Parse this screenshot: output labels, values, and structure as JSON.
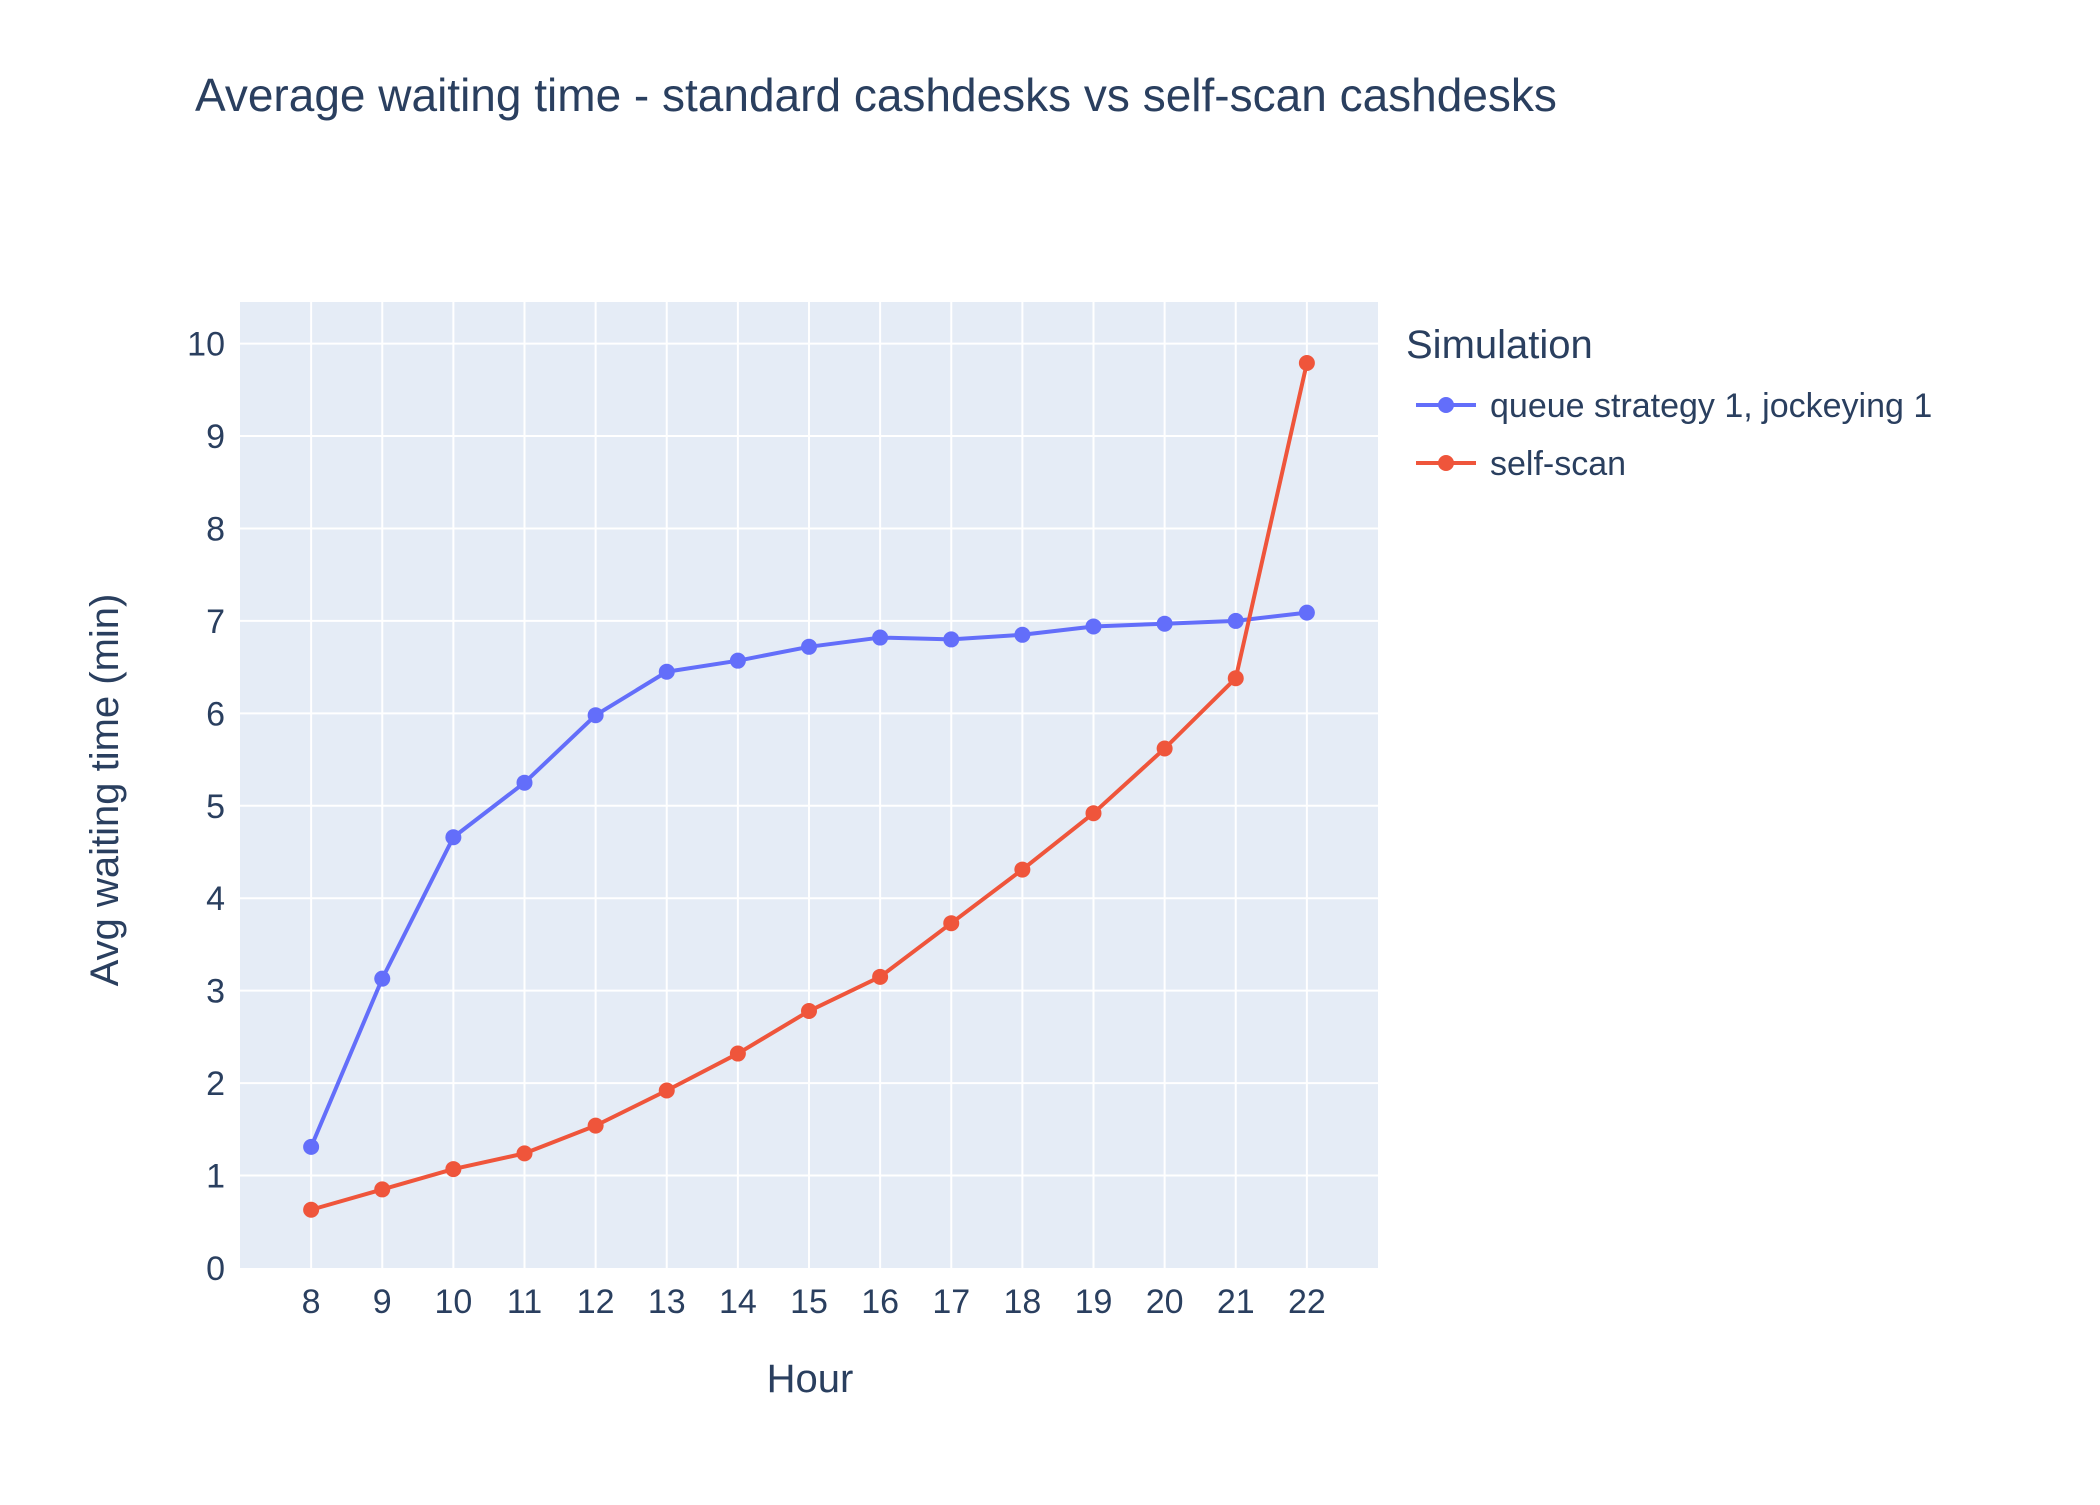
{
  "chart_data": {
    "type": "line",
    "title": "Average waiting time - standard cashdesks vs self-scan cashdesks",
    "xlabel": "Hour",
    "ylabel": "Avg waiting time (min)",
    "x": [
      8,
      9,
      10,
      11,
      12,
      13,
      14,
      15,
      16,
      17,
      18,
      19,
      20,
      21,
      22
    ],
    "xticks": [
      "8",
      "9",
      "10",
      "11",
      "12",
      "13",
      "14",
      "15",
      "16",
      "17",
      "18",
      "19",
      "20",
      "21",
      "22"
    ],
    "yticks": [
      "0",
      "1",
      "2",
      "3",
      "4",
      "5",
      "6",
      "7",
      "8",
      "9",
      "10"
    ],
    "xlim": [
      7,
      23
    ],
    "ylim": [
      0,
      10.45
    ],
    "grid": true,
    "legend": {
      "title": "Simulation",
      "placement": "right"
    },
    "series": [
      {
        "name": "queue strategy 1, jockeying 1",
        "color": "#636efa",
        "values": [
          1.31,
          3.13,
          4.66,
          5.25,
          5.98,
          6.45,
          6.57,
          6.72,
          6.82,
          6.8,
          6.85,
          6.94,
          6.97,
          7.0,
          7.09
        ]
      },
      {
        "name": "self-scan",
        "color": "#ef553b",
        "values": [
          0.63,
          0.85,
          1.07,
          1.24,
          1.54,
          1.92,
          2.32,
          2.78,
          3.15,
          3.73,
          4.31,
          4.92,
          5.62,
          6.38,
          9.79
        ]
      }
    ],
    "plot_background": "#e5ecf6",
    "gridline_color": "#ffffff"
  }
}
